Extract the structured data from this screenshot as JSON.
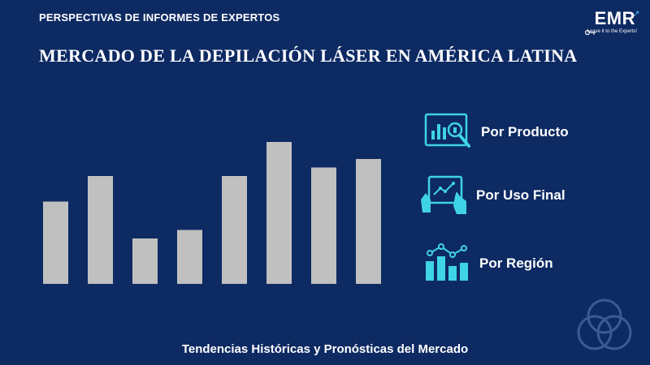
{
  "header": {
    "eyebrow": "PERSPECTIVAS DE INFORMES DE EXPERTOS",
    "title": "MERCADO DE LA DEPILACIÓN LÁSER EN AMÉRICA LATINA"
  },
  "brand": {
    "logo": "EMR",
    "tagline": "Leave it to the Experts!"
  },
  "legend": [
    {
      "label": "Por Producto",
      "icon": "product-analysis-icon"
    },
    {
      "label": "Por Uso Final",
      "icon": "touch-screen-icon"
    },
    {
      "label": "Por Región",
      "icon": "region-chart-icon"
    }
  ],
  "footer": {
    "text": "Tendencias Históricas y Pronósticas del Mercado"
  },
  "colors": {
    "background": "#0d2a63",
    "bar": "#c0c0c0",
    "accent": "#3fd3e8"
  },
  "chart_data": {
    "type": "bar",
    "categories": [
      "",
      "",
      "",
      "",
      "",
      "",
      "",
      ""
    ],
    "values": [
      58,
      76,
      32,
      38,
      76,
      100,
      82,
      88
    ],
    "ylim": [
      0,
      100
    ],
    "grid": false,
    "title": "",
    "xlabel": "",
    "ylabel": ""
  }
}
